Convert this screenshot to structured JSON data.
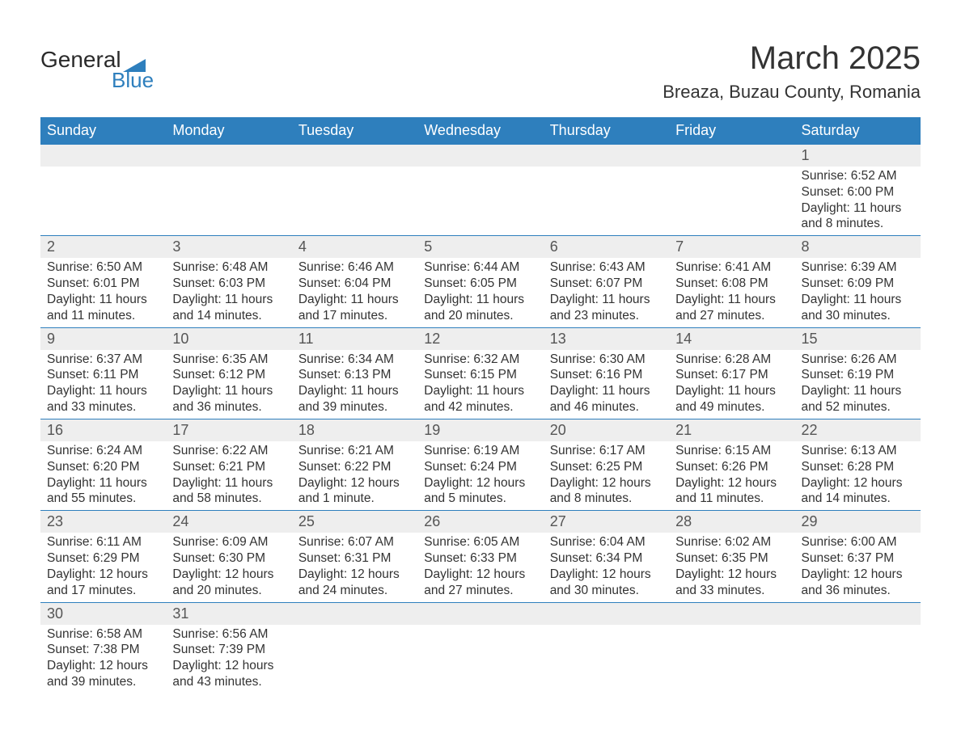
{
  "logo": {
    "line1": "General",
    "line2": "Blue"
  },
  "title": "March 2025",
  "location": "Breaza, Buzau County, Romania",
  "weekdays": [
    "Sunday",
    "Monday",
    "Tuesday",
    "Wednesday",
    "Thursday",
    "Friday",
    "Saturday"
  ],
  "colors": {
    "header_bg": "#2e7fbd",
    "header_text": "#ffffff",
    "daynum_bg": "#eeeeee",
    "row_border": "#2e7fbd",
    "text": "#333333",
    "logo_blue": "#2e7fbd"
  },
  "weeks": [
    [
      null,
      null,
      null,
      null,
      null,
      null,
      {
        "n": "1",
        "sr": "6:52 AM",
        "ss": "6:00 PM",
        "dl": "11 hours and 8 minutes."
      }
    ],
    [
      {
        "n": "2",
        "sr": "6:50 AM",
        "ss": "6:01 PM",
        "dl": "11 hours and 11 minutes."
      },
      {
        "n": "3",
        "sr": "6:48 AM",
        "ss": "6:03 PM",
        "dl": "11 hours and 14 minutes."
      },
      {
        "n": "4",
        "sr": "6:46 AM",
        "ss": "6:04 PM",
        "dl": "11 hours and 17 minutes."
      },
      {
        "n": "5",
        "sr": "6:44 AM",
        "ss": "6:05 PM",
        "dl": "11 hours and 20 minutes."
      },
      {
        "n": "6",
        "sr": "6:43 AM",
        "ss": "6:07 PM",
        "dl": "11 hours and 23 minutes."
      },
      {
        "n": "7",
        "sr": "6:41 AM",
        "ss": "6:08 PM",
        "dl": "11 hours and 27 minutes."
      },
      {
        "n": "8",
        "sr": "6:39 AM",
        "ss": "6:09 PM",
        "dl": "11 hours and 30 minutes."
      }
    ],
    [
      {
        "n": "9",
        "sr": "6:37 AM",
        "ss": "6:11 PM",
        "dl": "11 hours and 33 minutes."
      },
      {
        "n": "10",
        "sr": "6:35 AM",
        "ss": "6:12 PM",
        "dl": "11 hours and 36 minutes."
      },
      {
        "n": "11",
        "sr": "6:34 AM",
        "ss": "6:13 PM",
        "dl": "11 hours and 39 minutes."
      },
      {
        "n": "12",
        "sr": "6:32 AM",
        "ss": "6:15 PM",
        "dl": "11 hours and 42 minutes."
      },
      {
        "n": "13",
        "sr": "6:30 AM",
        "ss": "6:16 PM",
        "dl": "11 hours and 46 minutes."
      },
      {
        "n": "14",
        "sr": "6:28 AM",
        "ss": "6:17 PM",
        "dl": "11 hours and 49 minutes."
      },
      {
        "n": "15",
        "sr": "6:26 AM",
        "ss": "6:19 PM",
        "dl": "11 hours and 52 minutes."
      }
    ],
    [
      {
        "n": "16",
        "sr": "6:24 AM",
        "ss": "6:20 PM",
        "dl": "11 hours and 55 minutes."
      },
      {
        "n": "17",
        "sr": "6:22 AM",
        "ss": "6:21 PM",
        "dl": "11 hours and 58 minutes."
      },
      {
        "n": "18",
        "sr": "6:21 AM",
        "ss": "6:22 PM",
        "dl": "12 hours and 1 minute."
      },
      {
        "n": "19",
        "sr": "6:19 AM",
        "ss": "6:24 PM",
        "dl": "12 hours and 5 minutes."
      },
      {
        "n": "20",
        "sr": "6:17 AM",
        "ss": "6:25 PM",
        "dl": "12 hours and 8 minutes."
      },
      {
        "n": "21",
        "sr": "6:15 AM",
        "ss": "6:26 PM",
        "dl": "12 hours and 11 minutes."
      },
      {
        "n": "22",
        "sr": "6:13 AM",
        "ss": "6:28 PM",
        "dl": "12 hours and 14 minutes."
      }
    ],
    [
      {
        "n": "23",
        "sr": "6:11 AM",
        "ss": "6:29 PM",
        "dl": "12 hours and 17 minutes."
      },
      {
        "n": "24",
        "sr": "6:09 AM",
        "ss": "6:30 PM",
        "dl": "12 hours and 20 minutes."
      },
      {
        "n": "25",
        "sr": "6:07 AM",
        "ss": "6:31 PM",
        "dl": "12 hours and 24 minutes."
      },
      {
        "n": "26",
        "sr": "6:05 AM",
        "ss": "6:33 PM",
        "dl": "12 hours and 27 minutes."
      },
      {
        "n": "27",
        "sr": "6:04 AM",
        "ss": "6:34 PM",
        "dl": "12 hours and 30 minutes."
      },
      {
        "n": "28",
        "sr": "6:02 AM",
        "ss": "6:35 PM",
        "dl": "12 hours and 33 minutes."
      },
      {
        "n": "29",
        "sr": "6:00 AM",
        "ss": "6:37 PM",
        "dl": "12 hours and 36 minutes."
      }
    ],
    [
      {
        "n": "30",
        "sr": "6:58 AM",
        "ss": "7:38 PM",
        "dl": "12 hours and 39 minutes."
      },
      {
        "n": "31",
        "sr": "6:56 AM",
        "ss": "7:39 PM",
        "dl": "12 hours and 43 minutes."
      },
      null,
      null,
      null,
      null,
      null
    ]
  ],
  "labels": {
    "sunrise": "Sunrise: ",
    "sunset": "Sunset: ",
    "daylight": "Daylight: "
  }
}
